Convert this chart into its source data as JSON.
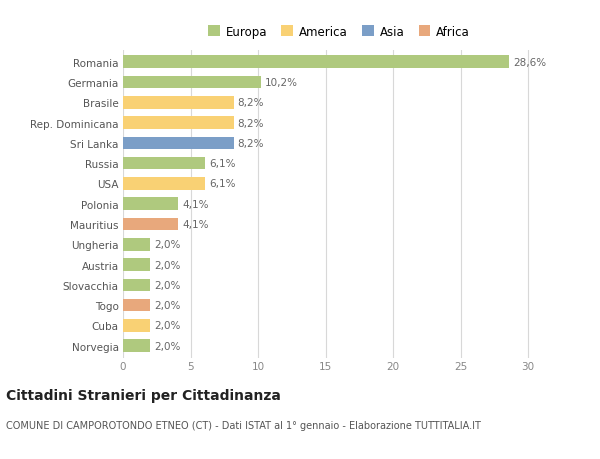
{
  "categories": [
    "Romania",
    "Germania",
    "Brasile",
    "Rep. Dominicana",
    "Sri Lanka",
    "Russia",
    "USA",
    "Polonia",
    "Mauritius",
    "Ungheria",
    "Austria",
    "Slovacchia",
    "Togo",
    "Cuba",
    "Norvegia"
  ],
  "values": [
    28.6,
    10.2,
    8.2,
    8.2,
    8.2,
    6.1,
    6.1,
    4.1,
    4.1,
    2.0,
    2.0,
    2.0,
    2.0,
    2.0,
    2.0
  ],
  "bar_colors": [
    "#afc97e",
    "#afc97e",
    "#f9d174",
    "#f9d174",
    "#7b9ec7",
    "#afc97e",
    "#f9d174",
    "#afc97e",
    "#e8a87c",
    "#afc97e",
    "#afc97e",
    "#afc97e",
    "#e8a87c",
    "#f9d174",
    "#afc97e"
  ],
  "value_labels": [
    "28,6%",
    "10,2%",
    "8,2%",
    "8,2%",
    "8,2%",
    "6,1%",
    "6,1%",
    "4,1%",
    "4,1%",
    "2,0%",
    "2,0%",
    "2,0%",
    "2,0%",
    "2,0%",
    "2,0%"
  ],
  "xlim": [
    0,
    32
  ],
  "xticks": [
    0,
    5,
    10,
    15,
    20,
    25,
    30
  ],
  "legend": {
    "Europa": "#afc97e",
    "America": "#f9d174",
    "Asia": "#7b9ec7",
    "Africa": "#e8a87c"
  },
  "title": "Cittadini Stranieri per Cittadinanza",
  "subtitle": "COMUNE DI CAMPOROTONDO ETNEO (CT) - Dati ISTAT al 1° gennaio - Elaborazione TUTTITALIA.IT",
  "background_color": "#ffffff",
  "grid_color": "#d8d8d8",
  "bar_height": 0.62,
  "label_fontsize": 7.5,
  "title_fontsize": 10,
  "subtitle_fontsize": 7,
  "legend_fontsize": 8.5
}
